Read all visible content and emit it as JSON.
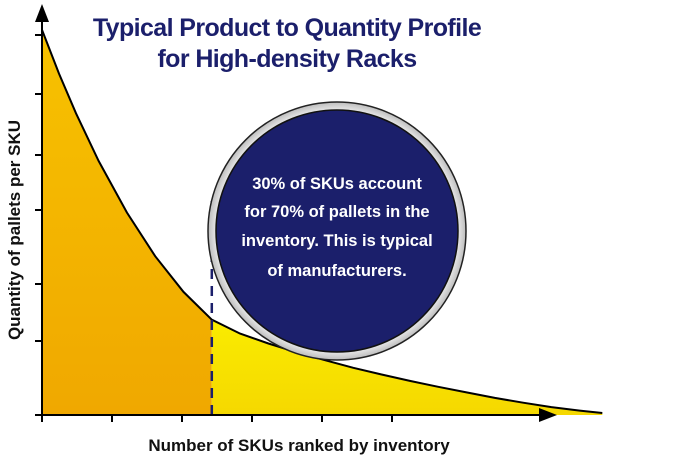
{
  "chart_data": {
    "type": "area",
    "title": "Typical Product to Quantity Profile",
    "subtitle": "for High-density Racks",
    "xlabel": "Number of SKUs ranked by inventory",
    "ylabel": "Quantity of pallets per SKU",
    "xlim": [
      0,
      100
    ],
    "ylim": [
      0,
      100
    ],
    "grid": false,
    "x_tick_count": 6,
    "y_tick_count": 7,
    "curve": {
      "x": [
        0,
        3,
        6,
        10,
        15,
        20,
        25,
        30,
        35,
        40,
        45,
        50,
        55,
        60,
        65,
        70,
        75,
        80,
        85,
        90,
        95,
        99
      ],
      "y": [
        97,
        86,
        76,
        64,
        51,
        40,
        31,
        24,
        20.5,
        18,
        15.8,
        13.8,
        11.9,
        10.2,
        8.6,
        7.1,
        5.7,
        4.3,
        3.1,
        2.0,
        1.1,
        0.5
      ]
    },
    "split_x": 30,
    "regions": [
      {
        "x_range": [
          0,
          30
        ],
        "color": "#f3b000"
      },
      {
        "x_range": [
          30,
          99
        ],
        "color": "#f8e000"
      }
    ],
    "split_line_color": "#1b1f6b",
    "annotation": {
      "lines": [
        "30% of SKUs account",
        "for 70% of pallets in the",
        "inventory. This is typical",
        "of manufacturers."
      ],
      "fill": "#1b1f6b",
      "text_color": "#ffffff"
    }
  }
}
